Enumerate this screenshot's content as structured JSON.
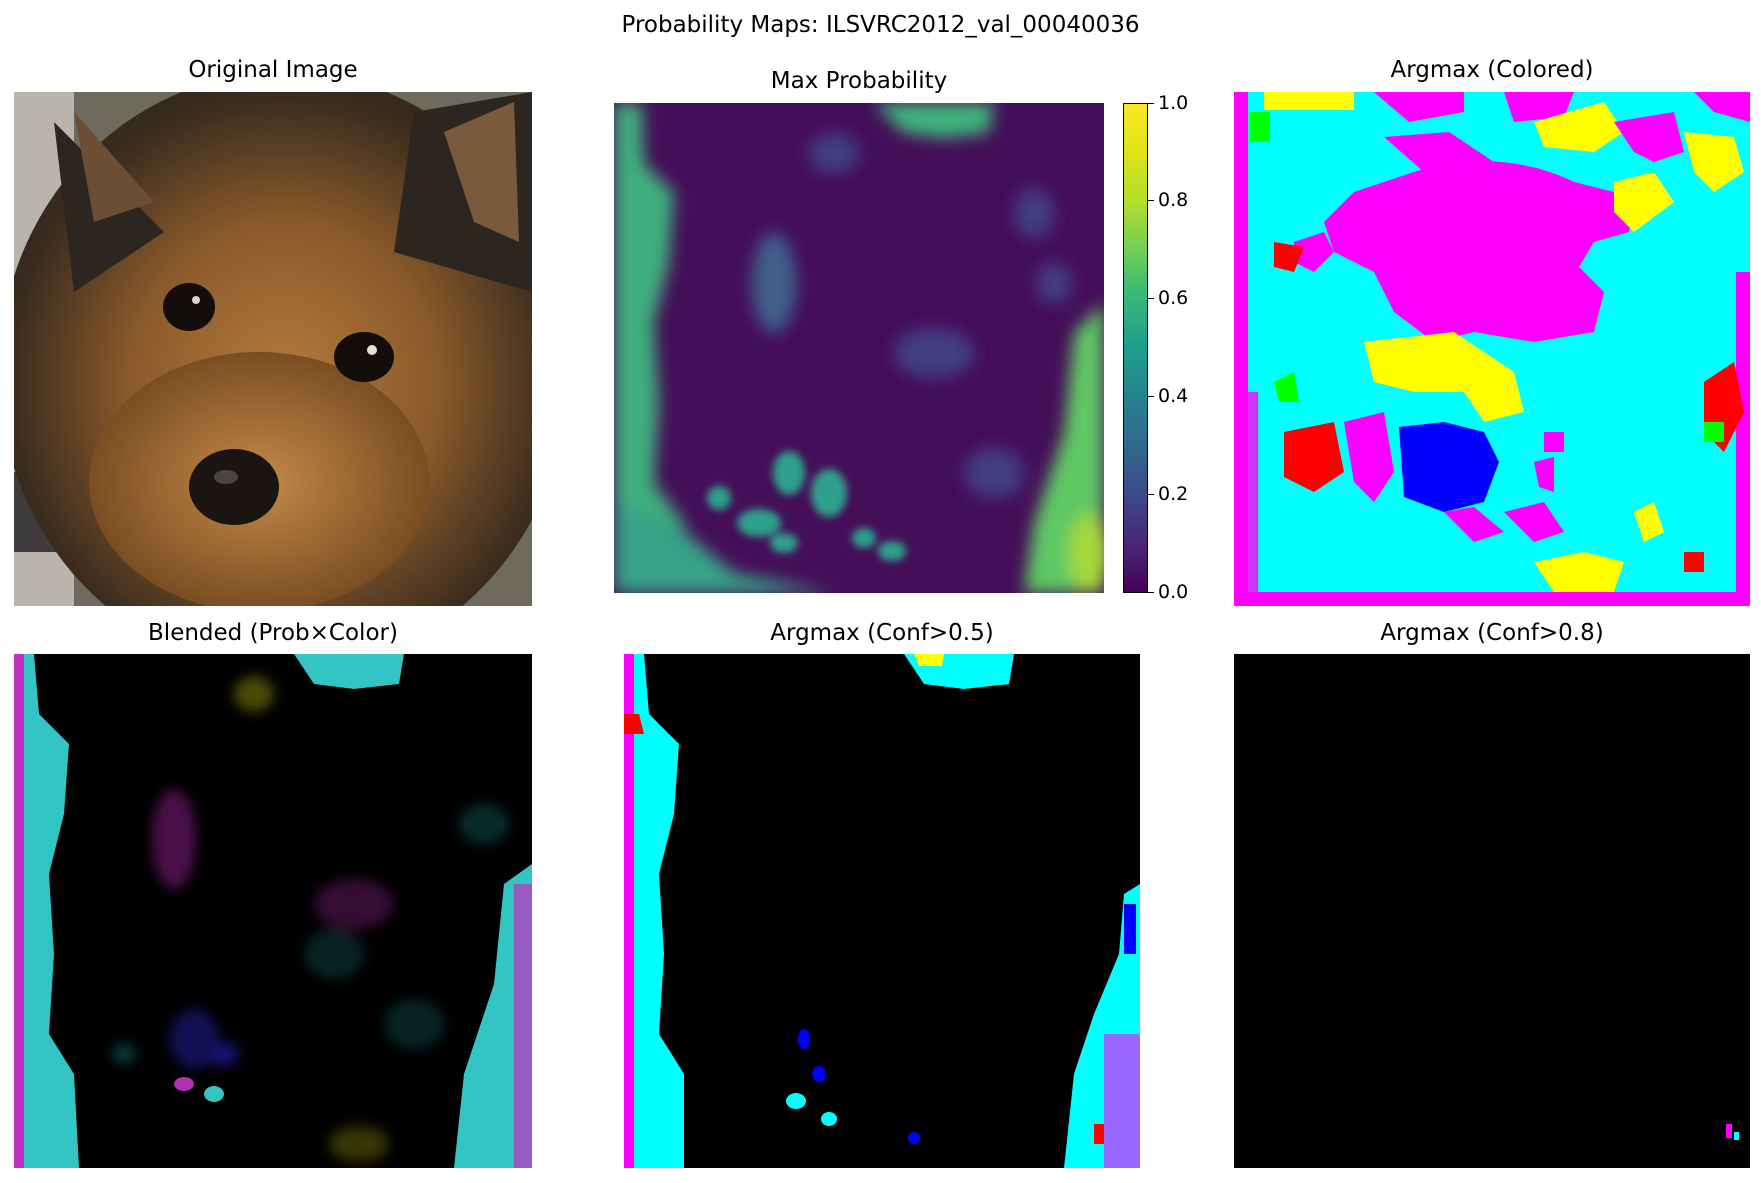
{
  "figure": {
    "suptitle": "Probability Maps: ILSVRC2012_val_00040036"
  },
  "panels": {
    "original": {
      "title": "Original Image"
    },
    "max_prob": {
      "title": "Max Probability"
    },
    "argmax_colored": {
      "title": "Argmax (Colored)"
    },
    "blended": {
      "title": "Blended (Prob×Color)"
    },
    "argmax_conf05": {
      "title": "Argmax (Conf>0.5)"
    },
    "argmax_conf08": {
      "title": "Argmax (Conf>0.8)"
    }
  },
  "colorbar": {
    "colormap": "viridis",
    "range": [
      0.0,
      1.0
    ],
    "tick_labels": [
      "0.0",
      "0.2",
      "0.4",
      "0.6",
      "0.8",
      "1.0"
    ]
  },
  "class_colors": {
    "cyan": "#00ffff",
    "magenta": "#ff00ff",
    "yellow": "#ffff00",
    "red": "#ff0000",
    "green": "#00ff00",
    "blue": "#0000ff"
  }
}
